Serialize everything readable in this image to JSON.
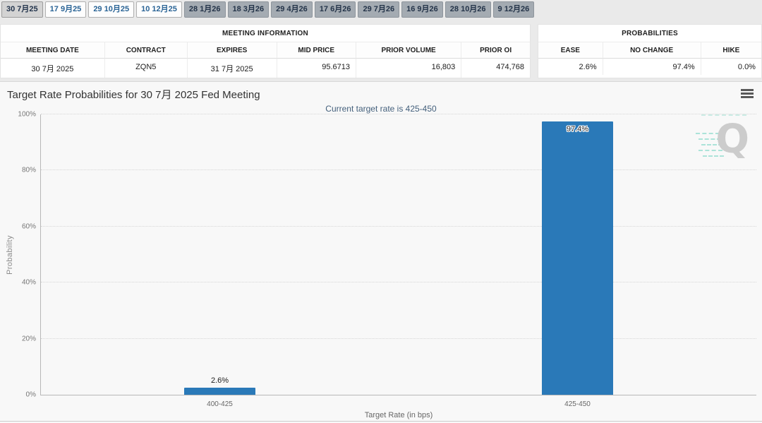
{
  "tabs": [
    {
      "label": "30 7月25",
      "state": "selected"
    },
    {
      "label": "17 9月25",
      "state": "link"
    },
    {
      "label": "29 10月25",
      "state": "link"
    },
    {
      "label": "10 12月25",
      "state": "link"
    },
    {
      "label": "28 1月26",
      "state": "disabled"
    },
    {
      "label": "18 3月26",
      "state": "disabled"
    },
    {
      "label": "29 4月26",
      "state": "disabled"
    },
    {
      "label": "17 6月26",
      "state": "disabled"
    },
    {
      "label": "29 7月26",
      "state": "disabled"
    },
    {
      "label": "16 9月26",
      "state": "disabled"
    },
    {
      "label": "28 10月26",
      "state": "disabled"
    },
    {
      "label": "9 12月26",
      "state": "disabled"
    }
  ],
  "meeting_info": {
    "title": "MEETING INFORMATION",
    "columns": [
      "MEETING DATE",
      "CONTRACT",
      "EXPIRES",
      "MID PRICE",
      "PRIOR VOLUME",
      "PRIOR OI"
    ],
    "values": [
      "30 7月 2025",
      "ZQN5",
      "31 7月 2025",
      "95.6713",
      "16,803",
      "474,768"
    ]
  },
  "probabilities": {
    "title": "PROBABILITIES",
    "columns": [
      "EASE",
      "NO CHANGE",
      "HIKE"
    ],
    "values": [
      "2.6%",
      "97.4%",
      "0.0%"
    ]
  },
  "chart": {
    "title": "Target Rate Probabilities for 30 7月 2025 Fed Meeting",
    "subtitle": "Current target rate is 425-450",
    "watermark_letter": "Q"
  },
  "chart_data": {
    "type": "bar",
    "categories": [
      "400-425",
      "425-450"
    ],
    "values": [
      2.6,
      97.4
    ],
    "value_labels": [
      "2.6%",
      "97.4%"
    ],
    "title": "Target Rate Probabilities for 30 7月 2025 Fed Meeting",
    "subtitle": "Current target rate is 425-450",
    "xlabel": "Target Rate (in bps)",
    "ylabel": "Probability",
    "ylim": [
      0,
      100
    ],
    "yticks": [
      0,
      20,
      40,
      60,
      80,
      100
    ],
    "ytick_labels": [
      "0%",
      "20%",
      "40%",
      "60%",
      "80%",
      "100%"
    ],
    "grid": "horizontal-dotted",
    "legend": "none",
    "bar_color": "#2a79b8"
  }
}
